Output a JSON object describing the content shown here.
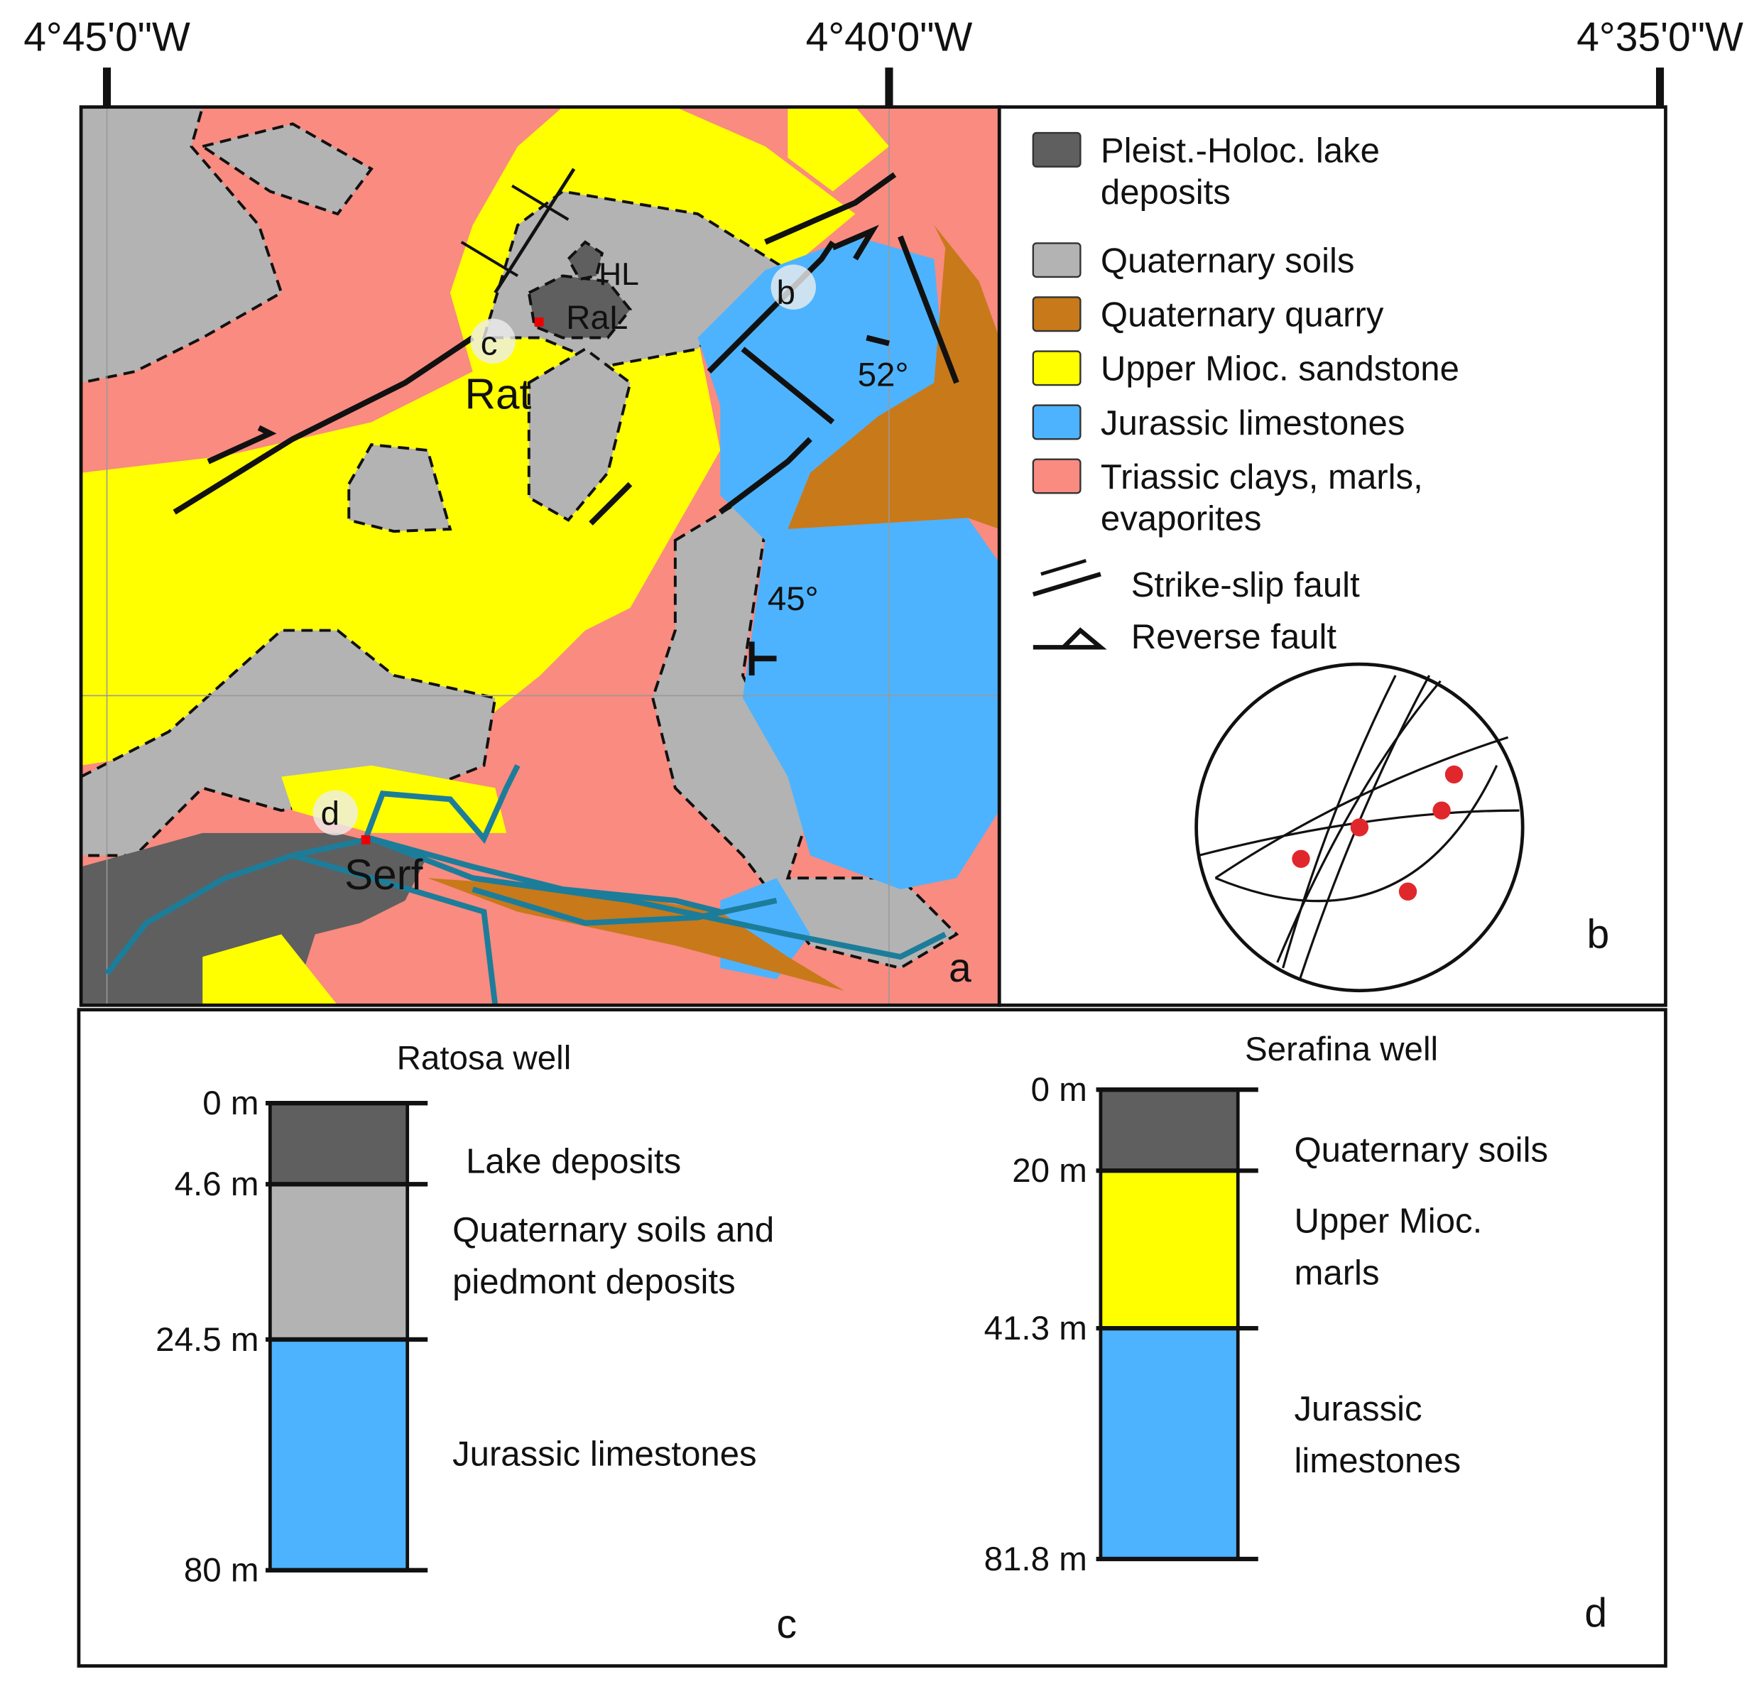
{
  "coordinates": [
    "4°45'0\"W",
    "4°40'0\"W",
    "4°35'0\"W"
  ],
  "map": {
    "labels": {
      "hl": "HL",
      "ral": "RaL",
      "rat": "Rat",
      "serf": "Serf",
      "site_c": "c",
      "site_b": "b",
      "site_d": "d",
      "dip_1": "52°",
      "dip_2": "45°"
    }
  },
  "legend": [
    {
      "lines": [
        "Pleist.-Holoc. lake",
        "deposits"
      ],
      "color": "#5f5f5f"
    },
    {
      "lines": [
        "Quaternary soils"
      ],
      "color": "#b3b3b3"
    },
    {
      "lines": [
        "Quaternary quarry"
      ],
      "color": "#c8791a"
    },
    {
      "lines": [
        "Upper Mioc. sandstone"
      ],
      "color": "#ffff00"
    },
    {
      "lines": [
        "Jurassic limestones"
      ],
      "color": "#4db3ff"
    },
    {
      "lines": [
        "Triassic clays, marls,",
        "evaporites"
      ],
      "color": "#f98b80"
    }
  ],
  "faults": [
    "Strike-slip fault",
    "Reverse fault"
  ],
  "panels": [
    "a",
    "b",
    "c",
    "d"
  ],
  "wells": [
    {
      "title": "Ratosa well",
      "depths": [
        "0 m",
        "4.6 m",
        "24.5 m",
        "80 m"
      ],
      "layers": [
        [
          "Lake deposits"
        ],
        [
          "Quaternary soils and",
          "piedmont deposits"
        ],
        [
          "Jurassic limestones"
        ]
      ]
    },
    {
      "title": "Serafina well",
      "depths": [
        "0 m",
        "20 m",
        "41.3 m",
        "81.8 m"
      ],
      "layers": [
        [
          "Quaternary soils"
        ],
        [
          "Upper Mioc.",
          "marls"
        ],
        [
          "Jurassic",
          "limestones"
        ]
      ]
    }
  ]
}
